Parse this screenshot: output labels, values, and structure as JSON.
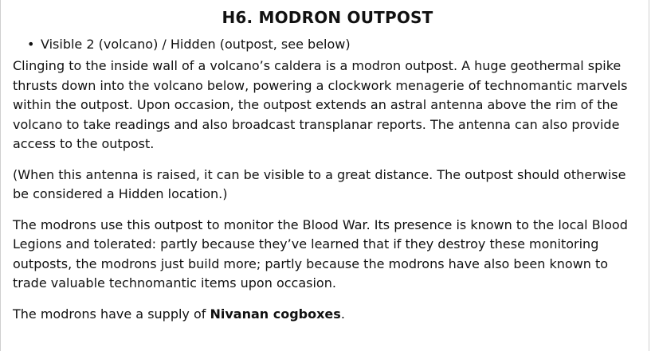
{
  "heading": "H6. MODRON OUTPOST",
  "visibility_item": "Visible 2 (volcano) / Hidden (outpost, see below)",
  "paragraphs": [
    "Clinging to the inside wall of a volcano’s caldera is a modron outpost. A huge geothermal spike thrusts down into the volcano below, powering a clockwork menagerie of technomantic marvels within the outpost. Upon occasion, the outpost extends an astral antenna above the rim of the volcano to take readings and also broadcast transplanar reports. The antenna can also provide access to the outpost.",
    "(When this antenna is raised, it can be visible to a great distance. The outpost should otherwise be considered a Hidden location.)",
    "The modrons use this outpost to monitor the Blood War. Its presence is known to the local Blood Legions and tolerated: partly because they’ve learned that if they destroy these monitoring outposts, the modrons just build more; partly because the modrons have also been known to trade valuable technomantic items upon occasion."
  ],
  "supply": {
    "prefix": "The modrons have a supply of ",
    "item": "Nivanan cogboxes",
    "suffix": "."
  }
}
